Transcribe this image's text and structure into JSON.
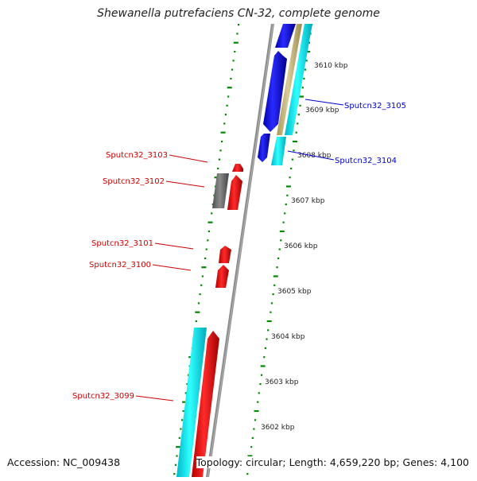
{
  "title": "Shewanella putrefaciens CN-32, complete genome",
  "footer": {
    "accession": "Accession: NC_009438",
    "summary": "Topology: circular; Length: 4,659,220 bp; Genes: 4,100"
  },
  "colors": {
    "forward_cds": "#0000ee",
    "reverse_cds": "#ee0000",
    "pseudo": "#666666",
    "rna": "#00e5ee",
    "other": "#c8b87a",
    "backbone": "#888888",
    "tick": "#008800",
    "label_forward": "#0000cc",
    "label_reverse": "#cc0000"
  },
  "scale": {
    "unit": "kbp",
    "ticks": [
      "3602 kbp",
      "3603 kbp",
      "3604 kbp",
      "3605 kbp",
      "3606 kbp",
      "3607 kbp",
      "3608 kbp",
      "3609 kbp",
      "3610 kbp"
    ]
  },
  "gene_labels": [
    {
      "name": "Sputcn32_3105",
      "strand": "forward"
    },
    {
      "name": "Sputcn32_3104",
      "strand": "forward"
    },
    {
      "name": "Sputcn32_3103",
      "strand": "reverse"
    },
    {
      "name": "Sputcn32_3102",
      "strand": "reverse"
    },
    {
      "name": "Sputcn32_3101",
      "strand": "reverse"
    },
    {
      "name": "Sputcn32_3100",
      "strand": "reverse"
    },
    {
      "name": "Sputcn32_3099",
      "strand": "reverse"
    }
  ]
}
